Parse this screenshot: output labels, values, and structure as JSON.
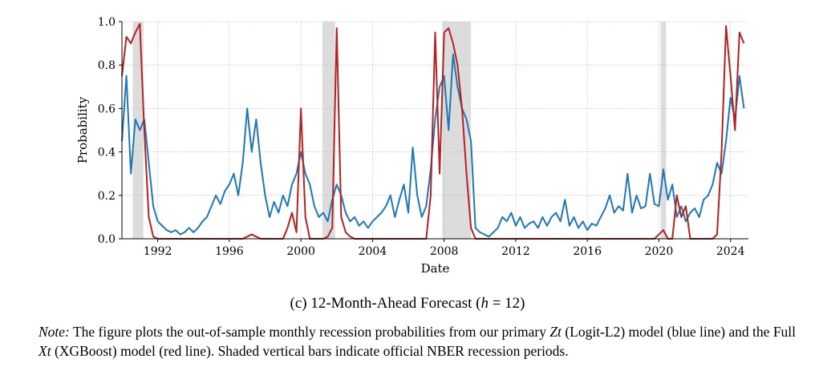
{
  "chart_data": {
    "type": "line",
    "title": "",
    "xlabel": "Date",
    "ylabel": "Probability",
    "xlim": [
      1990,
      2025
    ],
    "ylim": [
      0,
      1
    ],
    "xticks": [
      1992,
      1996,
      2000,
      2004,
      2008,
      2012,
      2016,
      2020,
      2024
    ],
    "yticks": [
      "0.0",
      "0.2",
      "0.4",
      "0.6",
      "0.8",
      "1.0"
    ],
    "grid": true,
    "x_start": 1990,
    "x_step": 0.25,
    "recessions": [
      [
        1990.6,
        1991.2
      ],
      [
        2001.2,
        2001.9
      ],
      [
        2007.9,
        2009.5
      ],
      [
        2020.1,
        2020.4
      ]
    ],
    "recession_color": "#dcdcdc",
    "series": [
      {
        "name": "Zt (Logit-L2)",
        "color": "#1f77b4",
        "values": [
          0.45,
          0.75,
          0.3,
          0.55,
          0.5,
          0.55,
          0.35,
          0.15,
          0.08,
          0.06,
          0.04,
          0.03,
          0.04,
          0.02,
          0.03,
          0.05,
          0.03,
          0.05,
          0.08,
          0.1,
          0.15,
          0.2,
          0.16,
          0.22,
          0.25,
          0.3,
          0.2,
          0.35,
          0.6,
          0.4,
          0.55,
          0.35,
          0.2,
          0.1,
          0.17,
          0.12,
          0.2,
          0.15,
          0.25,
          0.3,
          0.4,
          0.3,
          0.25,
          0.15,
          0.1,
          0.12,
          0.08,
          0.18,
          0.25,
          0.2,
          0.12,
          0.08,
          0.1,
          0.06,
          0.08,
          0.05,
          0.08,
          0.1,
          0.12,
          0.15,
          0.2,
          0.1,
          0.18,
          0.25,
          0.12,
          0.42,
          0.2,
          0.1,
          0.15,
          0.32,
          0.55,
          0.7,
          0.75,
          0.5,
          0.85,
          0.7,
          0.6,
          0.55,
          0.45,
          0.05,
          0.03,
          0.02,
          0.01,
          0.03,
          0.05,
          0.1,
          0.08,
          0.12,
          0.06,
          0.1,
          0.05,
          0.07,
          0.08,
          0.05,
          0.1,
          0.06,
          0.1,
          0.12,
          0.08,
          0.18,
          0.06,
          0.1,
          0.05,
          0.08,
          0.04,
          0.07,
          0.06,
          0.1,
          0.14,
          0.2,
          0.12,
          0.15,
          0.13,
          0.3,
          0.12,
          0.2,
          0.14,
          0.15,
          0.3,
          0.16,
          0.15,
          0.32,
          0.18,
          0.25,
          0.1,
          0.15,
          0.08,
          0.12,
          0.14,
          0.1,
          0.18,
          0.2,
          0.25,
          0.35,
          0.3,
          0.45,
          0.65,
          0.55,
          0.75,
          0.6
        ]
      },
      {
        "name": "Full Xt (XGBoost)",
        "color": "#b22222",
        "values": [
          0.75,
          0.93,
          0.9,
          0.95,
          0.99,
          0.5,
          0.1,
          0.01,
          0,
          0,
          0,
          0,
          0,
          0,
          0,
          0,
          0,
          0,
          0,
          0,
          0,
          0,
          0,
          0,
          0,
          0,
          0,
          0,
          0.01,
          0.02,
          0.01,
          0,
          0,
          0,
          0,
          0,
          0,
          0.05,
          0.12,
          0.03,
          0.6,
          0.1,
          0,
          0,
          0,
          0,
          0.01,
          0.05,
          0.97,
          0.1,
          0.03,
          0.01,
          0,
          0,
          0,
          0,
          0,
          0,
          0,
          0,
          0,
          0,
          0,
          0,
          0,
          0,
          0,
          0,
          0,
          0.2,
          0.95,
          0.3,
          0.95,
          0.97,
          0.9,
          0.8,
          0.6,
          0.3,
          0.05,
          0,
          0,
          0,
          0,
          0,
          0,
          0,
          0,
          0,
          0,
          0,
          0,
          0,
          0,
          0,
          0,
          0,
          0,
          0,
          0,
          0,
          0,
          0,
          0,
          0,
          0,
          0,
          0,
          0,
          0,
          0,
          0,
          0,
          0,
          0,
          0,
          0,
          0,
          0,
          0,
          0,
          0.02,
          0.04,
          0,
          0,
          0.2,
          0.1,
          0.15,
          0,
          0,
          0,
          0,
          0,
          0,
          0.02,
          0.4,
          0.98,
          0.75,
          0.5,
          0.95,
          0.9
        ]
      }
    ]
  },
  "caption": {
    "prefix": "(c) 12-Month-Ahead Forecast (",
    "var": "h",
    "suffix": " = 12)"
  },
  "note": {
    "label": "Note:",
    "t1": " The figure plots the out-of-sample monthly recession probabilities from our primary ",
    "z": "Zt",
    "t2": " (Logit-L2) model (blue line) and the Full ",
    "x": "Xt",
    "t3": " (XGBoost) model (red line). Shaded vertical bars indicate official NBER recession periods."
  }
}
